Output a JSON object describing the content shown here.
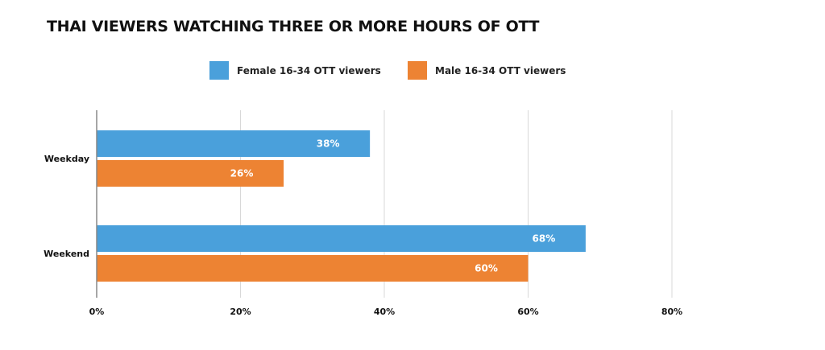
{
  "chart_data": {
    "type": "bar",
    "orientation": "horizontal",
    "title": "THAI VIEWERS WATCHING THREE OR MORE HOURS OF OTT",
    "categories": [
      "Weekday",
      "Weekend"
    ],
    "series": [
      {
        "name": "Female 16-34 OTT viewers",
        "values": [
          38,
          68
        ],
        "labels": [
          "38%",
          "68%"
        ],
        "color": "#4aa0db"
      },
      {
        "name": "Male 16-34 OTT viewers",
        "values": [
          26,
          60
        ],
        "labels": [
          "26%",
          "60%"
        ],
        "color": "#ed8333"
      }
    ],
    "xlim": [
      0,
      80
    ],
    "xticks": [
      0,
      20,
      40,
      60,
      80
    ],
    "xtick_labels": [
      "0%",
      "20%",
      "40%",
      "60%",
      "80%"
    ],
    "grid": "vertical",
    "legend_position": "top"
  }
}
